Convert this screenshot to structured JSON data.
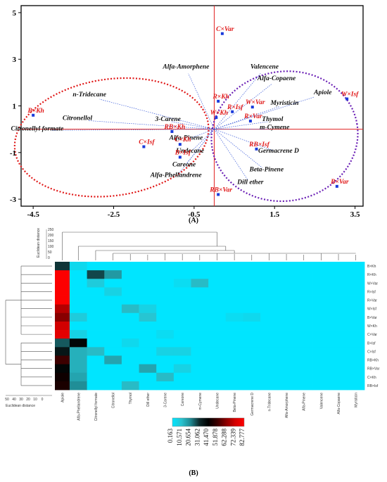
{
  "figure": {
    "caption_a": "(A)",
    "caption_b": "(B)"
  },
  "chart_data": [
    {
      "type": "scatter",
      "xlim": [
        -4.8,
        3.7
      ],
      "ylim": [
        -3.3,
        5.3
      ],
      "x_ticks": [
        "-4.5",
        "-2.5",
        "-0.5",
        "1.5",
        "3.5"
      ],
      "y_ticks": [
        "5",
        "3",
        "1",
        "-1",
        "-3"
      ],
      "x_tick_values": [
        -4.5,
        -2.5,
        -0.5,
        1.5,
        3.5
      ],
      "y_tick_values": [
        5,
        3,
        1,
        -1,
        -3
      ],
      "grid": false,
      "colors": {
        "frame": "#000000",
        "axis": "#e02020",
        "points": "#1a3adb",
        "sample_label": "#e01818",
        "compound_label": "#111111",
        "loading": "#3a5bd9",
        "ellipse_left": "#e01818",
        "ellipse_right": "#6a1fb5",
        "outer_border": "#3aa64a"
      },
      "samples": [
        {
          "label": "C×Var",
          "x": 0.2,
          "y": 4.1
        },
        {
          "label": "R×Kh",
          "x": 0.1,
          "y": 1.2
        },
        {
          "label": "R×Isf",
          "x": 0.45,
          "y": 0.75
        },
        {
          "label": "W×Var",
          "x": 0.95,
          "y": 0.95
        },
        {
          "label": "W×Kh",
          "x": 0.05,
          "y": 0.5
        },
        {
          "label": "R×Var",
          "x": 0.9,
          "y": 0.35
        },
        {
          "label": "W×Isf",
          "x": 3.3,
          "y": 1.3
        },
        {
          "label": "RB×Isf",
          "x": 1.05,
          "y": -0.85
        },
        {
          "label": "RB×Var",
          "x": 0.1,
          "y": -2.8
        },
        {
          "label": "B×Var",
          "x": 3.05,
          "y": -2.45
        },
        {
          "label": "B×Kh",
          "x": -4.5,
          "y": 0.6
        },
        {
          "label": "RB×Kh",
          "x": -1.05,
          "y": -0.1
        },
        {
          "label": "C×Kh",
          "x": -0.85,
          "y": -0.65
        },
        {
          "label": "C×Isf",
          "x": -1.75,
          "y": -0.75
        },
        {
          "label": "B×Isf",
          "x": -0.85,
          "y": -1.2
        }
      ],
      "compounds": [
        {
          "label": "Alfa-Amorphene",
          "x": -0.7,
          "y": 2.6
        },
        {
          "label": "Valencene",
          "x": 1.25,
          "y": 2.6
        },
        {
          "label": "Alfa-Copaene",
          "x": 1.55,
          "y": 2.1
        },
        {
          "label": "Apiole",
          "x": 2.7,
          "y": 1.5
        },
        {
          "label": "Myristicin",
          "x": 1.75,
          "y": 1.05
        },
        {
          "label": "Thymol",
          "x": 1.45,
          "y": 0.35
        },
        {
          "label": "m-Cymene",
          "x": 1.5,
          "y": 0.0
        },
        {
          "label": "Germacrene D",
          "x": 1.6,
          "y": -1.0
        },
        {
          "label": "Beta-Pinene",
          "x": 1.3,
          "y": -1.8
        },
        {
          "label": "Dill ether",
          "x": 0.9,
          "y": -2.35
        },
        {
          "label": "n-Tridecane",
          "x": -3.1,
          "y": 1.4
        },
        {
          "label": "Citronellol",
          "x": -3.4,
          "y": 0.4
        },
        {
          "label": "Citronellyl formate",
          "x": -4.4,
          "y": -0.05
        },
        {
          "label": "3-Carene",
          "x": -1.15,
          "y": 0.35
        },
        {
          "label": "Alfa-Pinene",
          "x": -0.7,
          "y": -0.45
        },
        {
          "label": "Undecane",
          "x": -0.6,
          "y": -1.0
        },
        {
          "label": "Careone",
          "x": -0.75,
          "y": -1.6
        },
        {
          "label": "Alfa-Phellandrene",
          "x": -0.95,
          "y": -2.05
        }
      ]
    },
    {
      "type": "heatmap",
      "columns": [
        "Apiole",
        "Alfa-Phellandrene",
        "Citronellyl formate",
        "Citronellol",
        "Thymol",
        "Dill ether",
        "3-Carene",
        "Careone",
        "m-Cymene",
        "Undecane",
        "Beta-Pinene",
        "Germacrene D",
        "n-Tridecane",
        "Alfa-Amorphene",
        "Alfa-Pinene",
        "Valencene",
        "Alfa-Copaene",
        "Myristicin"
      ],
      "rows": [
        "B×Kh",
        "R×Kh",
        "W×Var",
        "R×Isf",
        "R×Var",
        "W×Isf",
        "B×Var",
        "W×Kh",
        "C×Var",
        "B×Isf",
        "C×Isf",
        "RB×Kh",
        "RB×Var",
        "C×Kh",
        "RB×Isf"
      ],
      "values": [
        [
          30,
          4,
          0.2,
          0.2,
          0.2,
          0.2,
          0.2,
          0.2,
          0.2,
          0.2,
          0.2,
          0.2,
          0.2,
          0.2,
          0.2,
          0.2,
          0.2,
          0.2
        ],
        [
          82,
          0.2,
          28,
          18,
          0.2,
          0.2,
          0.2,
          0.2,
          0.2,
          0.2,
          0.2,
          0.2,
          0.2,
          0.2,
          0.2,
          0.2,
          0.2,
          0.2
        ],
        [
          82,
          0.2,
          8,
          0.2,
          0.2,
          0.2,
          0.2,
          3,
          12,
          0.2,
          0.2,
          0.2,
          0.2,
          0.2,
          0.2,
          0.2,
          0.2,
          0.2
        ],
        [
          82,
          0.2,
          0.2,
          6,
          0.2,
          0.2,
          0.2,
          0.2,
          0.2,
          0.2,
          0.2,
          0.2,
          0.2,
          0.2,
          0.2,
          0.2,
          0.2,
          0.2
        ],
        [
          82,
          0.2,
          0.2,
          0.2,
          0.2,
          0.2,
          0.2,
          0.2,
          0.2,
          0.2,
          0.2,
          0.2,
          0.2,
          0.2,
          0.2,
          0.2,
          0.2,
          0.2
        ],
        [
          68,
          0.2,
          0.2,
          0.2,
          12,
          6,
          0.2,
          0.2,
          0.2,
          0.2,
          0.2,
          0.2,
          0.2,
          0.2,
          0.2,
          0.2,
          0.2,
          0.2
        ],
        [
          62,
          8,
          0.2,
          0.2,
          0.2,
          10,
          0.2,
          0.2,
          0.2,
          0.2,
          3,
          4,
          0.2,
          0.2,
          0.2,
          0.2,
          0.2,
          0.2
        ],
        [
          72,
          0.2,
          0.2,
          0.2,
          0.2,
          0.2,
          0.2,
          0.2,
          0.2,
          0.2,
          0.2,
          0.2,
          0.2,
          0.2,
          0.2,
          0.2,
          0.2,
          0.2
        ],
        [
          76,
          6,
          0.2,
          0.2,
          0.2,
          0.2,
          3,
          0.2,
          0.2,
          0.2,
          0.2,
          0.2,
          0.2,
          0.2,
          0.2,
          0.2,
          0.2,
          0.2
        ],
        [
          26,
          40,
          0.2,
          0.2,
          4,
          0.2,
          0.2,
          0.2,
          0.2,
          0.2,
          0.2,
          0.2,
          0.2,
          0.2,
          0.2,
          0.2,
          0.2,
          0.2
        ],
        [
          36,
          14,
          12,
          0.2,
          0.2,
          0.2,
          6,
          6,
          0.2,
          0.2,
          0.2,
          0.2,
          0.2,
          0.2,
          0.2,
          0.2,
          0.2,
          0.2
        ],
        [
          52,
          14,
          0.2,
          16,
          0.2,
          0.2,
          0.2,
          0.2,
          0.2,
          0.2,
          0.2,
          0.2,
          0.2,
          0.2,
          0.2,
          0.2,
          0.2,
          0.2
        ],
        [
          40,
          14,
          0.2,
          0.2,
          0.2,
          16,
          0.2,
          6,
          0.2,
          0.2,
          0.2,
          0.2,
          0.2,
          0.2,
          0.2,
          0.2,
          0.2,
          0.2
        ],
        [
          44,
          16,
          0.2,
          0.2,
          0.2,
          0.2,
          12,
          0.2,
          0.2,
          0.2,
          0.2,
          0.2,
          0.2,
          0.2,
          0.2,
          0.2,
          0.2,
          0.2
        ],
        [
          46,
          20,
          0.2,
          0.2,
          12,
          0.2,
          0.2,
          0.2,
          0.2,
          0.2,
          0.2,
          0.2,
          0.2,
          0.2,
          0.2,
          0.2,
          0.2,
          0.2
        ]
      ],
      "colorbar_ticks": [
        "0.163",
        "10.571",
        "20.654",
        "31.062",
        "41.470",
        "51.878",
        "62.288",
        "72.339",
        "82.777"
      ],
      "colorbar_stops": [
        "#00e5ff",
        "#29c3cf",
        "#1f8a93",
        "#0d2a2c",
        "#000000",
        "#3b0000",
        "#8a0000",
        "#d40000",
        "#ff0000"
      ],
      "top_dendrogram_label": "Euclidean distance",
      "top_dendrogram_ticks": [
        "250",
        "200",
        "150",
        "100",
        "50",
        "0"
      ],
      "left_dendrogram_label": "Euclidean distance",
      "left_dendrogram_ticks": [
        "50",
        "40",
        "30",
        "20",
        "10",
        "0"
      ]
    }
  ]
}
